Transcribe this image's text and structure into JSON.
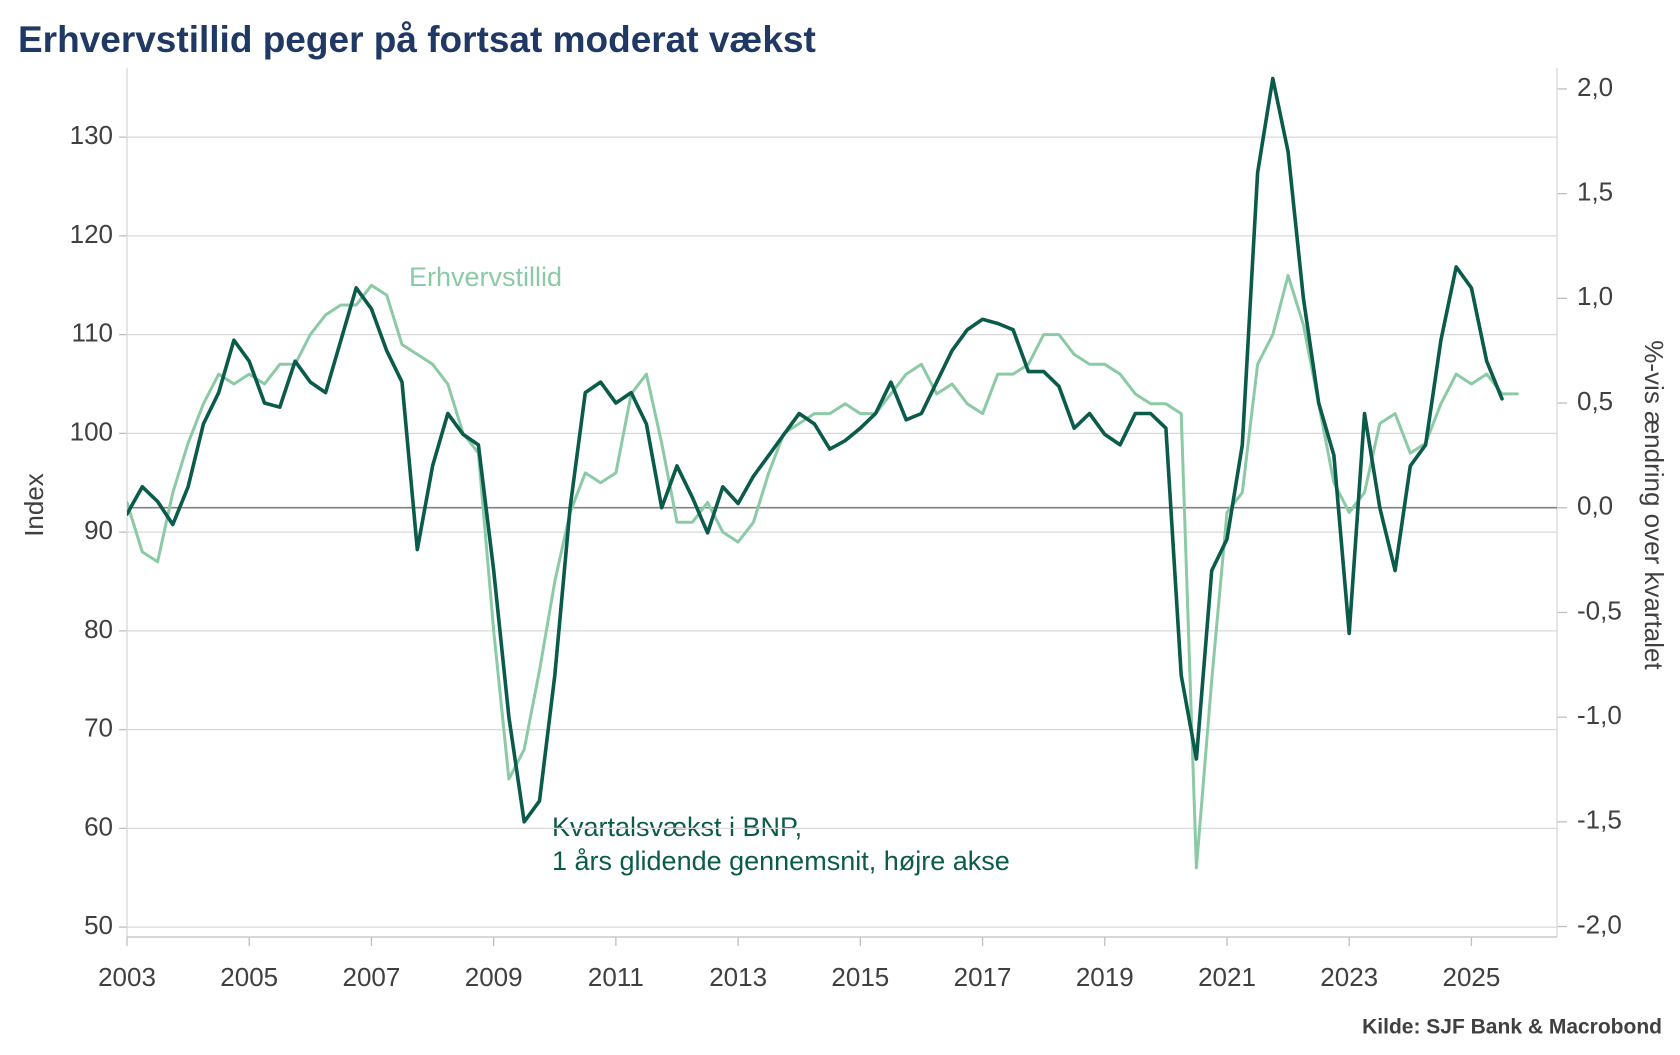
{
  "chart_data": {
    "type": "line",
    "title": "Erhvervstillid peger på fortsat moderat vækst",
    "y_label": "Index",
    "y2_label": "%-vis ændring over kvartalet",
    "source": "Kilde: SJF Bank & Macrobond",
    "annotations": [
      "Erhvervstillid",
      "Kvartalsvækst i BNP,",
      "1 års glidende gennemsnit, højre akse"
    ],
    "xlim": [
      2003,
      2026.4
    ],
    "xticks": [
      2003,
      2005,
      2007,
      2009,
      2011,
      2013,
      2015,
      2017,
      2019,
      2021,
      2023,
      2025
    ],
    "ylim": [
      49,
      137
    ],
    "yticks": [
      50,
      60,
      70,
      80,
      90,
      100,
      110,
      120,
      130
    ],
    "y2lim": [
      -2.05,
      2.1
    ],
    "y2ticks": [
      {
        "value": -2,
        "label": "-2,0"
      },
      {
        "value": -1.5,
        "label": "-1,5"
      },
      {
        "value": -1,
        "label": "-1,0"
      },
      {
        "value": -0.5,
        "label": "-0,5"
      },
      {
        "value": 0,
        "label": "0,0"
      },
      {
        "value": 0.5,
        "label": "0,5"
      },
      {
        "value": 1,
        "label": "1,0"
      },
      {
        "value": 1.5,
        "label": "1,5"
      },
      {
        "value": 2,
        "label": "2,0"
      }
    ],
    "y2_reference_line": 0,
    "grid": true,
    "series": [
      {
        "name": "Erhvervstillid",
        "color": "#8ccaa6",
        "axis": "y",
        "x": [
          2003,
          2003.25,
          2003.5,
          2003.75,
          2004,
          2004.25,
          2004.5,
          2004.75,
          2005,
          2005.25,
          2005.5,
          2005.75,
          2006,
          2006.25,
          2006.5,
          2006.75,
          2007,
          2007.25,
          2007.5,
          2007.75,
          2008,
          2008.25,
          2008.5,
          2008.75,
          2009,
          2009.25,
          2009.5,
          2009.75,
          2010,
          2010.25,
          2010.5,
          2010.75,
          2011,
          2011.25,
          2011.5,
          2011.75,
          2012,
          2012.25,
          2012.5,
          2012.75,
          2013,
          2013.25,
          2013.5,
          2013.75,
          2014,
          2014.25,
          2014.5,
          2014.75,
          2015,
          2015.25,
          2015.5,
          2015.75,
          2016,
          2016.25,
          2016.5,
          2016.75,
          2017,
          2017.25,
          2017.5,
          2017.75,
          2018,
          2018.25,
          2018.5,
          2018.75,
          2019,
          2019.25,
          2019.5,
          2019.75,
          2020,
          2020.25,
          2020.5,
          2020.75,
          2021,
          2021.25,
          2021.5,
          2021.75,
          2022,
          2022.25,
          2022.5,
          2022.75,
          2023,
          2023.25,
          2023.5,
          2023.75,
          2024,
          2024.25,
          2024.5,
          2024.75,
          2025,
          2025.25,
          2025.5,
          2025.75
        ],
        "values": [
          93,
          88,
          87,
          94,
          99,
          103,
          106,
          105,
          106,
          105,
          107,
          107,
          110,
          112,
          113,
          113,
          115,
          114,
          109,
          108,
          107,
          105,
          100,
          98,
          80,
          65,
          68,
          76,
          85,
          92,
          96,
          95,
          96,
          104,
          106,
          99,
          91,
          91,
          93,
          90,
          89,
          91,
          96,
          100,
          101,
          102,
          102,
          103,
          102,
          102,
          104,
          106,
          107,
          104,
          105,
          103,
          102,
          106,
          106,
          107,
          110,
          110,
          108,
          107,
          107,
          106,
          104,
          103,
          103,
          102,
          56,
          75,
          92,
          94,
          107,
          110,
          116,
          111,
          103,
          95,
          92,
          94,
          101,
          102,
          98,
          99,
          103,
          106,
          105,
          106,
          104,
          104
        ]
      },
      {
        "name": "Kvartalsvækst i BNP, 1 års glidende gennemsnit",
        "color": "#0b5b4a",
        "axis": "y2",
        "x": [
          2003,
          2003.25,
          2003.5,
          2003.75,
          2004,
          2004.25,
          2004.5,
          2004.75,
          2005,
          2005.25,
          2005.5,
          2005.75,
          2006,
          2006.25,
          2006.5,
          2006.75,
          2007,
          2007.25,
          2007.5,
          2007.75,
          2008,
          2008.25,
          2008.5,
          2008.75,
          2009,
          2009.25,
          2009.5,
          2009.75,
          2010,
          2010.25,
          2010.5,
          2010.75,
          2011,
          2011.25,
          2011.5,
          2011.75,
          2012,
          2012.25,
          2012.5,
          2012.75,
          2013,
          2013.25,
          2013.5,
          2013.75,
          2014,
          2014.25,
          2014.5,
          2014.75,
          2015,
          2015.25,
          2015.5,
          2015.75,
          2016,
          2016.25,
          2016.5,
          2016.75,
          2017,
          2017.25,
          2017.5,
          2017.75,
          2018,
          2018.25,
          2018.5,
          2018.75,
          2019,
          2019.25,
          2019.5,
          2019.75,
          2020,
          2020.25,
          2020.5,
          2020.75,
          2021,
          2021.25,
          2021.5,
          2021.75,
          2022,
          2022.25,
          2022.5,
          2022.75,
          2023,
          2023.25,
          2023.5,
          2023.75,
          2024,
          2024.25,
          2024.5,
          2024.75,
          2025,
          2025.25,
          2025.5
        ],
        "values": [
          -0.03,
          0.1,
          0.03,
          -0.08,
          0.1,
          0.4,
          0.55,
          0.8,
          0.7,
          0.5,
          0.48,
          0.7,
          0.6,
          0.55,
          0.8,
          1.05,
          0.95,
          0.75,
          0.6,
          -0.2,
          0.2,
          0.45,
          0.35,
          0.3,
          -0.3,
          -1.0,
          -1.5,
          -1.4,
          -0.8,
          0.0,
          0.55,
          0.6,
          0.5,
          0.55,
          0.4,
          0.0,
          0.2,
          0.05,
          -0.12,
          0.1,
          0.02,
          0.15,
          0.25,
          0.35,
          0.45,
          0.4,
          0.28,
          0.32,
          0.38,
          0.45,
          0.6,
          0.42,
          0.45,
          0.6,
          0.75,
          0.85,
          0.9,
          0.88,
          0.85,
          0.65,
          0.65,
          0.58,
          0.38,
          0.45,
          0.35,
          0.3,
          0.45,
          0.45,
          0.38,
          -0.8,
          -1.2,
          -0.3,
          -0.15,
          0.3,
          1.6,
          2.05,
          1.7,
          1.0,
          0.5,
          0.25,
          -0.6,
          0.45,
          0.0,
          -0.3,
          0.2,
          0.3,
          0.8,
          1.15,
          1.05,
          0.7,
          0.52
        ]
      }
    ]
  }
}
